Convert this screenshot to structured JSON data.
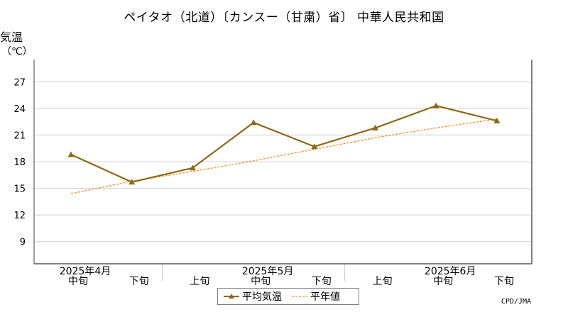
{
  "title": "ペイタオ（北道）〔カンスー（甘粛）省〕 中華人民共和国",
  "credit": "CPD/JMA",
  "chart_data": {
    "type": "line",
    "ylabel": "気温",
    "yunit": "（℃）",
    "ylim": [
      6.5,
      29.5
    ],
    "yticks": [
      9,
      12,
      15,
      18,
      21,
      24,
      27
    ],
    "grid": true,
    "legend_position": "bottom-center",
    "categories": [
      "中旬",
      "下旬",
      "上旬",
      "中旬",
      "下旬",
      "上旬",
      "中旬",
      "下旬"
    ],
    "month_labels": [
      "2025年4月",
      "2025年5月",
      "2025年6月"
    ],
    "series": [
      {
        "name": "平均気温",
        "values": [
          18.8,
          15.7,
          17.3,
          22.4,
          19.7,
          21.8,
          24.3,
          22.6
        ],
        "color": "#8B6914",
        "marker": "triangle"
      },
      {
        "name": "平年値",
        "values": [
          14.4,
          15.8,
          16.9,
          18.1,
          19.4,
          20.7,
          21.8,
          22.8
        ],
        "color": "#F28C28",
        "style": "dashed"
      }
    ]
  }
}
